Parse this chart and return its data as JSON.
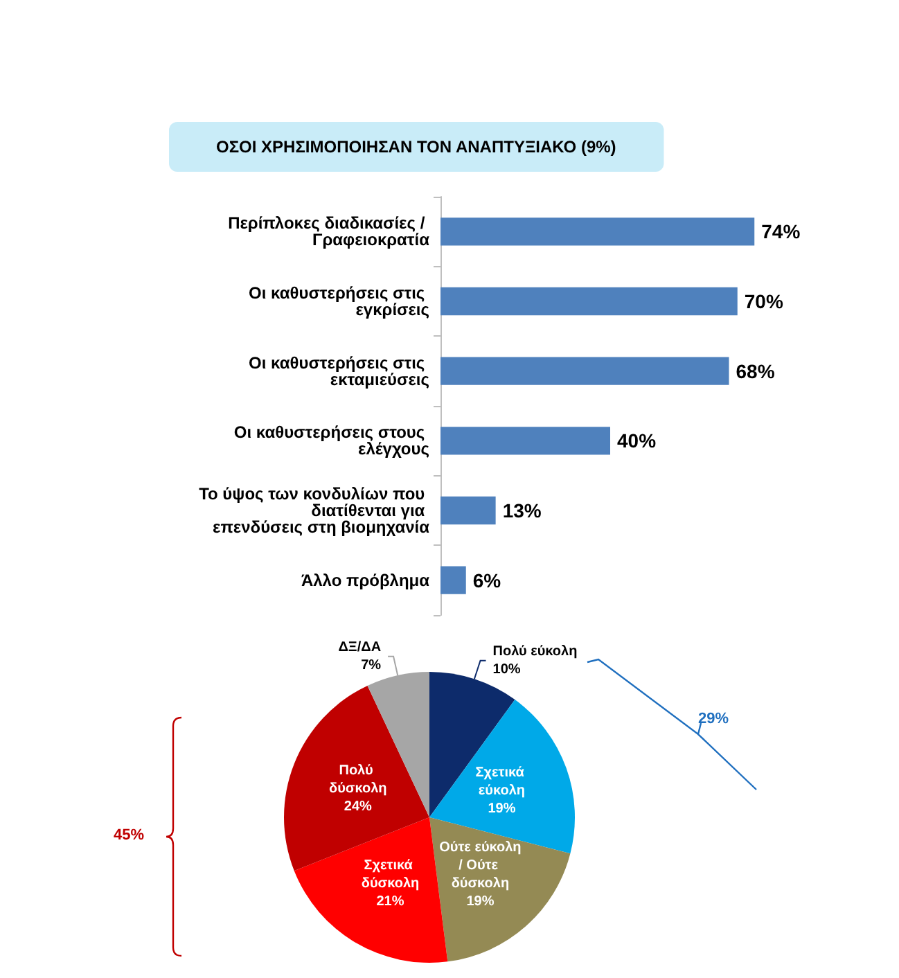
{
  "chart_data": [
    {
      "type": "bar",
      "orientation": "horizontal",
      "title": "ΟΣΟΙ ΧΡΗΣΙΜΟΠΟΙΗΣΑΝ ΤΟΝ ΑΝΑΠΤΥΞΙΑΚΟ (9%)",
      "categories": [
        "Περίπλοκες διαδικασίες / Γραφειοκρατία",
        "Οι καθυστερήσεις στις εγκρίσεις",
        "Οι καθυστερήσεις στις εκταμιεύσεις",
        "Οι καθυστερήσεις στους ελέγχους",
        "Το ύψος των κονδυλίων που διατίθενται για επενδύσεις στη βιομηχανία",
        "Άλλο πρόβλημα"
      ],
      "values": [
        74,
        70,
        68,
        40,
        13,
        6
      ],
      "value_labels": [
        "74%",
        "70%",
        "68%",
        "40%",
        "13%",
        "6%"
      ],
      "color": "#4f81bd",
      "legend": false
    },
    {
      "type": "pie",
      "categories": [
        "Πολύ εύκολη",
        "Σχετικά εύκολη",
        "Ούτε εύκολη/ Ούτε δύσκολη",
        "Σχετικά δύσκολη",
        "Πολύ δύσκολη",
        "ΔΞ/ΔΑ"
      ],
      "values": [
        10,
        19,
        19,
        21,
        24,
        7
      ],
      "value_labels": [
        "10%",
        "19%",
        "19%",
        "21%",
        "24%",
        "7%"
      ],
      "colors": [
        "#0d2b6b",
        "#00a9e8",
        "#948a54",
        "#ff0000",
        "#c00000",
        "#a6a6a6"
      ],
      "annotations": [
        "29%",
        "45%"
      ],
      "legend": false
    }
  ]
}
